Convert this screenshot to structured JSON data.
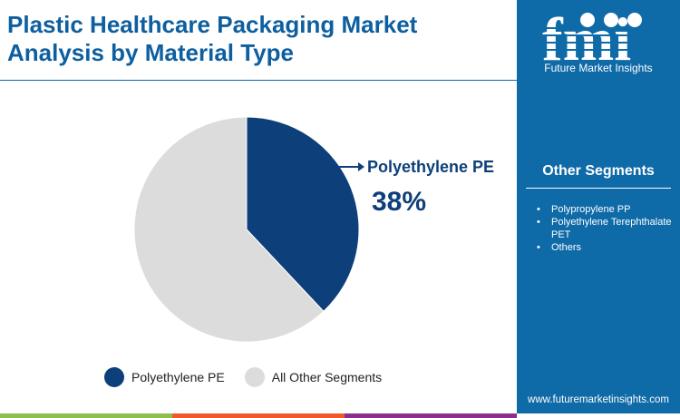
{
  "title": "Plastic Healthcare Packaging Market Analysis by Material Type",
  "brand": {
    "name": "Future Market Insights",
    "url": "www.futuremarketinsights.com",
    "logo_text": "fmi"
  },
  "other_segments": {
    "title": "Other Segments",
    "items": [
      "Polypropylene PP",
      "Polyethylene Terephthalate PET",
      "Others"
    ]
  },
  "colors": {
    "primary": "#0d3f7a",
    "other": "#dcdcdc",
    "sidebar": "#0f6aa8",
    "bars": [
      "#8cc04b",
      "#f05a28",
      "#8b2f8f"
    ]
  },
  "chart_data": {
    "type": "pie",
    "categories": [
      "Polyethylene PE",
      "All Other Segments"
    ],
    "values": [
      38,
      62
    ],
    "callout": {
      "label": "Polyethylene PE",
      "value": "38%"
    },
    "legend": "bottom"
  }
}
